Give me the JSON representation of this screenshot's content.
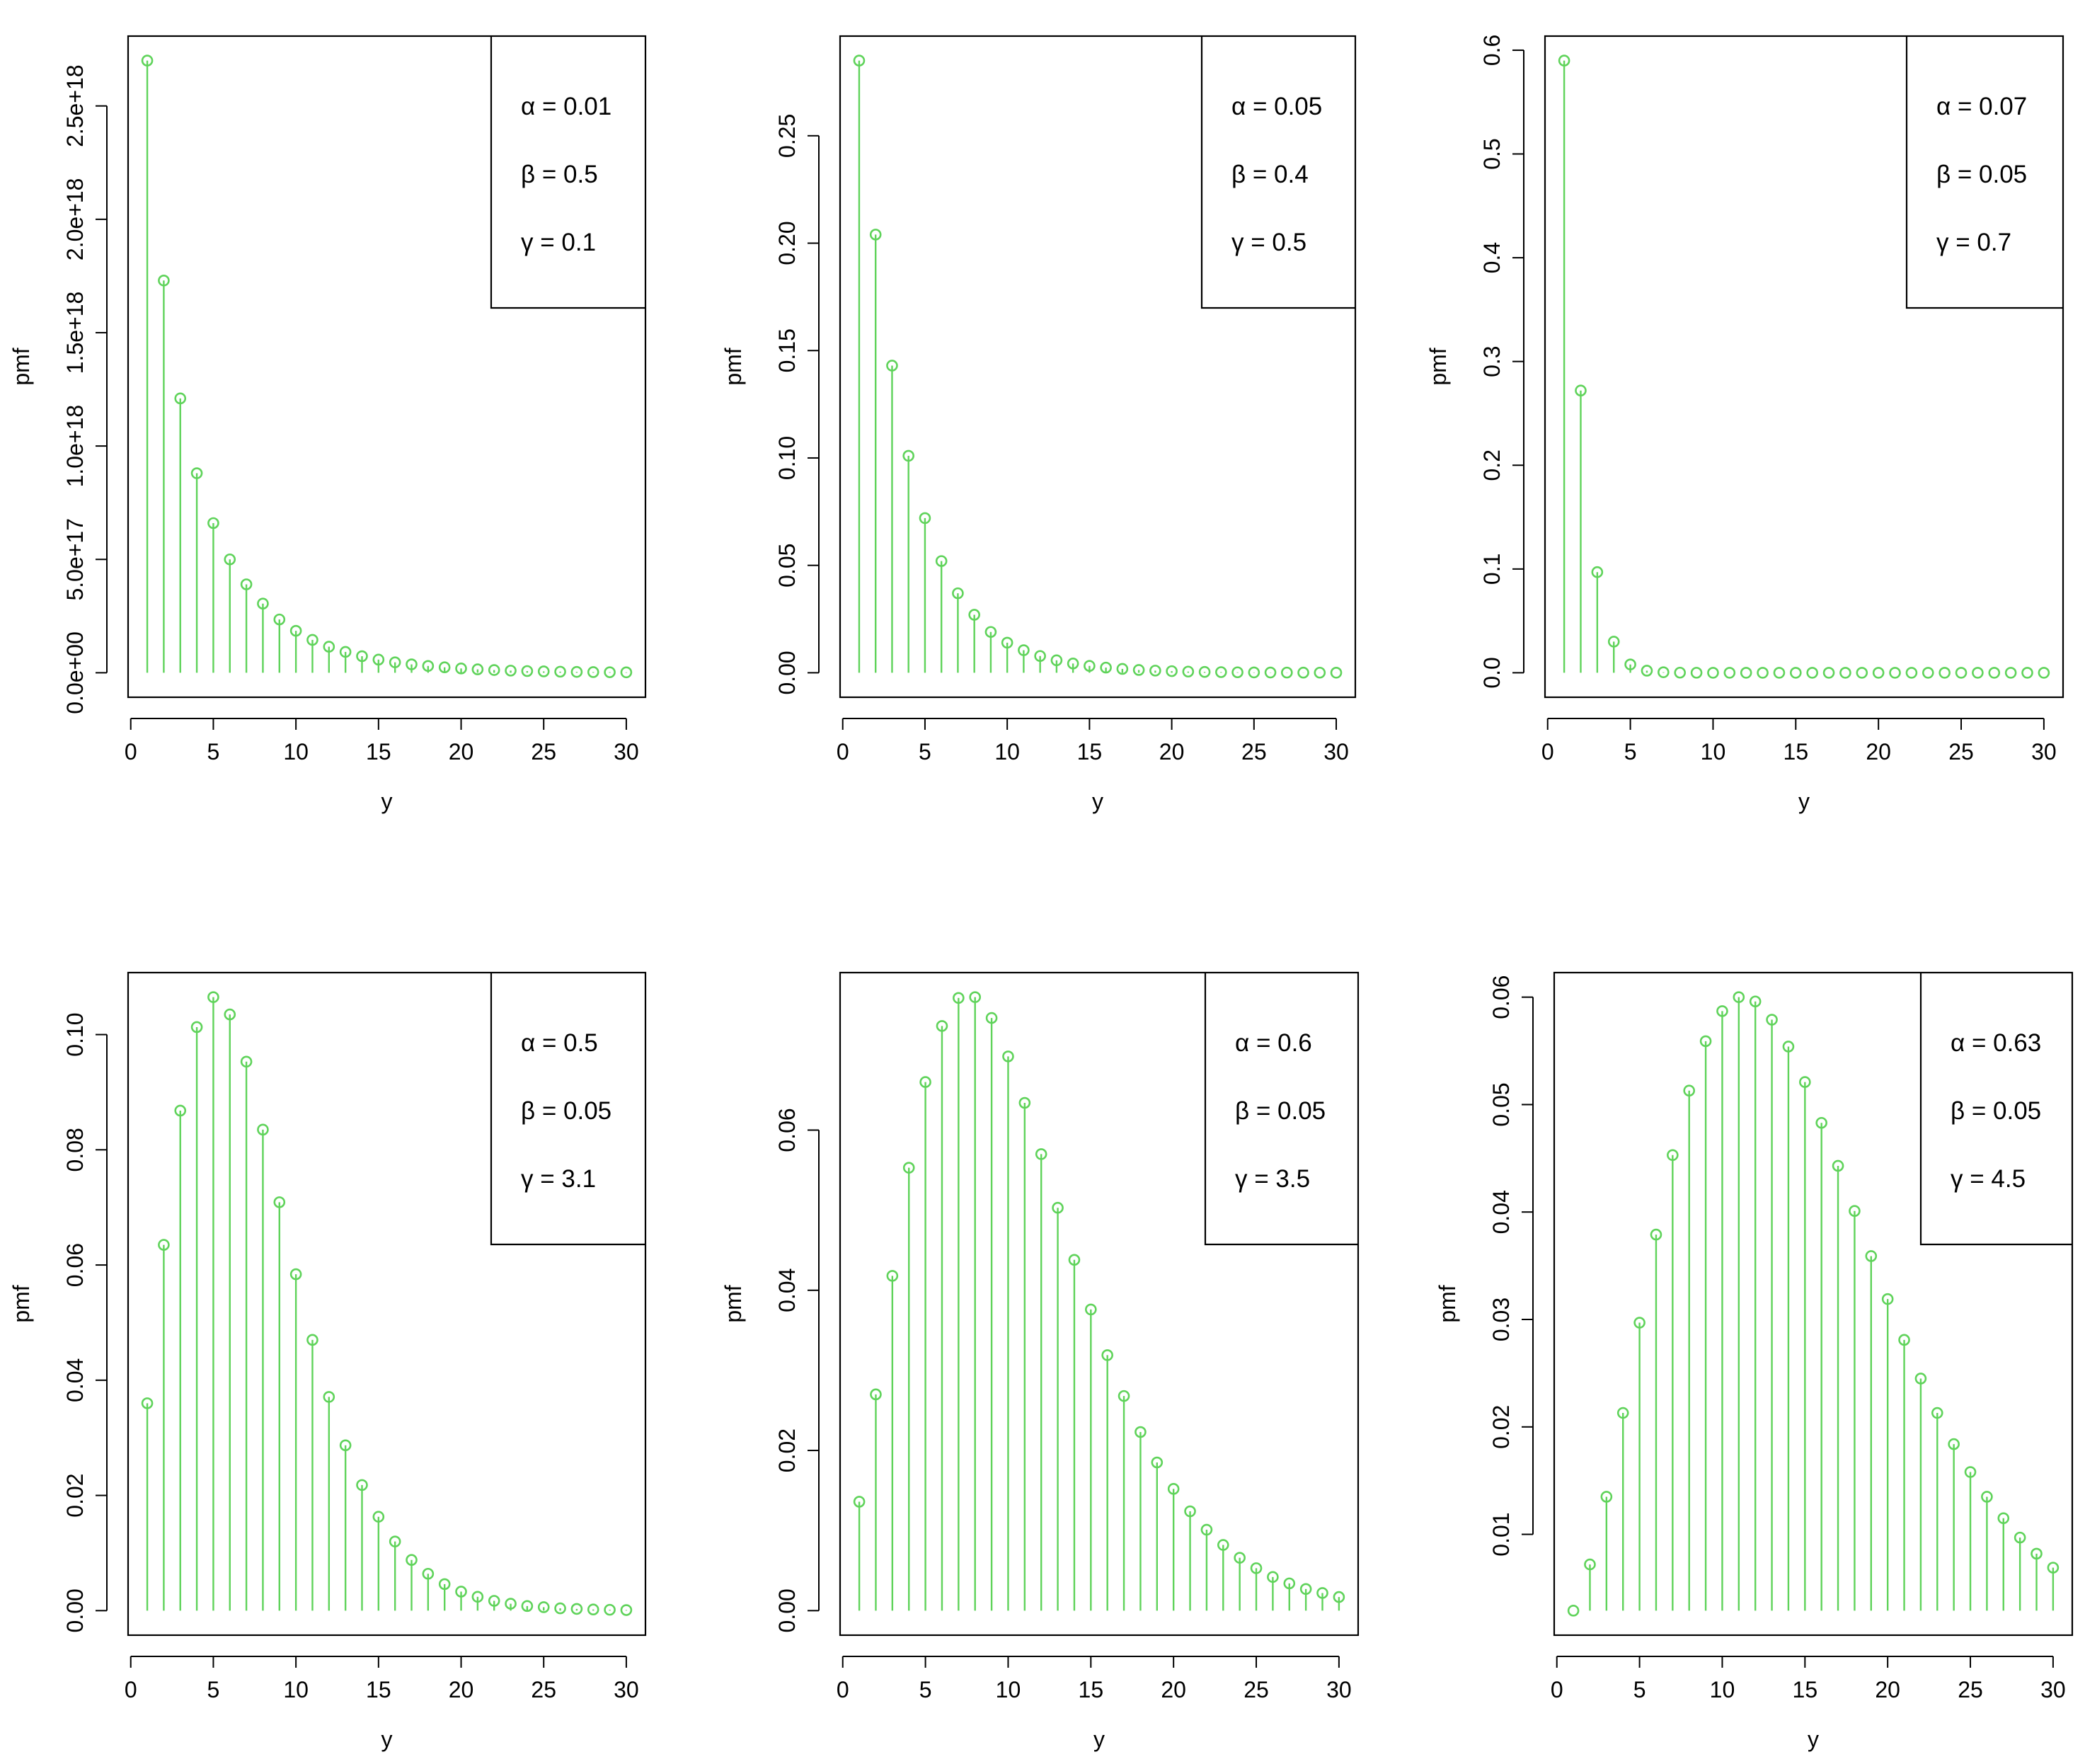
{
  "colors": {
    "series": "#5fd35a",
    "axis": "#000000",
    "background": "#ffffff"
  },
  "chart_data": [
    {
      "type": "scatter",
      "style": "stem",
      "xlabel": "y",
      "ylabel": "pmf",
      "xlim": [
        1,
        30
      ],
      "xticks": [
        "0",
        "5",
        "10",
        "15",
        "20",
        "25",
        "30"
      ],
      "xtick_values": [
        0,
        5,
        10,
        15,
        20,
        25,
        30
      ],
      "yticks": [
        "0.0e+00",
        "5.0e+17",
        "1.0e+18",
        "1.5e+18",
        "2.0e+18",
        "2.5e+18"
      ],
      "ytick_values": [
        0,
        5e+17,
        1e+18,
        1.5e+18,
        2e+18,
        2.5e+18
      ],
      "ylim": [
        0,
        2.7e+18
      ],
      "legend": [
        "α = 0.01",
        "β = 0.5",
        "γ = 0.1"
      ],
      "legend_position": "top-right",
      "x": [
        1,
        2,
        3,
        4,
        5,
        6,
        7,
        8,
        9,
        10,
        11,
        12,
        13,
        14,
        15,
        16,
        17,
        18,
        19,
        20,
        21,
        22,
        23,
        24,
        25,
        26,
        27,
        28,
        29,
        30
      ],
      "values": [
        2.7e+18,
        1.73e+18,
        1.21e+18,
        8.8e+17,
        6.6e+17,
        5e+17,
        3.9e+17,
        3.05e+17,
        2.35e+17,
        1.85e+17,
        1.45e+17,
        1.15e+17,
        9.2e+16,
        7.3e+16,
        5.8e+16,
        4.6e+16,
        3.7e+16,
        3e+16,
        2.4e+16,
        1.9e+16,
        1.5e+16,
        1.2e+16,
        9500000000000000.0,
        7500000000000000.0,
        6000000000000000.0,
        4800000000000000.0,
        3800000000000000.0,
        3000000000000000.0,
        2400000000000000.0,
        1900000000000000.0
      ]
    },
    {
      "type": "scatter",
      "style": "stem",
      "xlabel": "y",
      "ylabel": "pmf",
      "xlim": [
        1,
        30
      ],
      "xticks": [
        "0",
        "5",
        "10",
        "15",
        "20",
        "25",
        "30"
      ],
      "xtick_values": [
        0,
        5,
        10,
        15,
        20,
        25,
        30
      ],
      "yticks": [
        "0.00",
        "0.05",
        "0.10",
        "0.15",
        "0.20",
        "0.25"
      ],
      "ytick_values": [
        0,
        0.05,
        0.1,
        0.15,
        0.2,
        0.25
      ],
      "ylim": [
        0,
        0.285
      ],
      "legend": [
        "α = 0.05",
        "β = 0.4",
        "γ = 0.5"
      ],
      "legend_position": "top-right",
      "x": [
        1,
        2,
        3,
        4,
        5,
        6,
        7,
        8,
        9,
        10,
        11,
        12,
        13,
        14,
        15,
        16,
        17,
        18,
        19,
        20,
        21,
        22,
        23,
        24,
        25,
        26,
        27,
        28,
        29,
        30
      ],
      "values": [
        0.285,
        0.204,
        0.143,
        0.101,
        0.072,
        0.052,
        0.037,
        0.027,
        0.019,
        0.014,
        0.0105,
        0.0078,
        0.0058,
        0.0043,
        0.0032,
        0.0024,
        0.0018,
        0.0013,
        0.001,
        0.00075,
        0.00055,
        0.0004,
        0.0003,
        0.00022,
        0.00016,
        0.00012,
        9e-05,
        7e-05,
        5e-05,
        4e-05
      ]
    },
    {
      "type": "scatter",
      "style": "stem",
      "xlabel": "y",
      "ylabel": "pmf",
      "xlim": [
        1,
        30
      ],
      "xticks": [
        "0",
        "5",
        "10",
        "15",
        "20",
        "25",
        "30"
      ],
      "xtick_values": [
        0,
        5,
        10,
        15,
        20,
        25,
        30
      ],
      "yticks": [
        "0.0",
        "0.1",
        "0.2",
        "0.3",
        "0.4",
        "0.5",
        "0.6"
      ],
      "ytick_values": [
        0,
        0.1,
        0.2,
        0.3,
        0.4,
        0.5,
        0.6
      ],
      "ylim": [
        0,
        0.59
      ],
      "legend": [
        "α = 0.07",
        "β = 0.05",
        "γ = 0.7"
      ],
      "legend_position": "top-right",
      "x": [
        1,
        2,
        3,
        4,
        5,
        6,
        7,
        8,
        9,
        10,
        11,
        12,
        13,
        14,
        15,
        16,
        17,
        18,
        19,
        20,
        21,
        22,
        23,
        24,
        25,
        26,
        27,
        28,
        29,
        30
      ],
      "values": [
        0.59,
        0.272,
        0.097,
        0.03,
        0.008,
        0.002,
        0.0005,
        0.0001,
        2e-05,
        0,
        0,
        0,
        0,
        0,
        0,
        0,
        0,
        0,
        0,
        0,
        0,
        0,
        0,
        0,
        0,
        0,
        0,
        0,
        0,
        0
      ]
    },
    {
      "type": "scatter",
      "style": "stem",
      "xlabel": "y",
      "ylabel": "pmf",
      "xlim": [
        1,
        30
      ],
      "xticks": [
        "0",
        "5",
        "10",
        "15",
        "20",
        "25",
        "30"
      ],
      "xtick_values": [
        0,
        5,
        10,
        15,
        20,
        25,
        30
      ],
      "yticks": [
        "0.00",
        "0.02",
        "0.04",
        "0.06",
        "0.08",
        "0.10"
      ],
      "ytick_values": [
        0,
        0.02,
        0.04,
        0.06,
        0.08,
        0.1
      ],
      "ylim": [
        0,
        0.1065
      ],
      "legend": [
        "α = 0.5",
        "β = 0.05",
        "γ = 3.1"
      ],
      "legend_position": "top-right",
      "x": [
        1,
        2,
        3,
        4,
        5,
        6,
        7,
        8,
        9,
        10,
        11,
        12,
        13,
        14,
        15,
        16,
        17,
        18,
        19,
        20,
        21,
        22,
        23,
        24,
        25,
        26,
        27,
        28,
        29,
        30
      ],
      "values": [
        0.036,
        0.0635,
        0.0868,
        0.1013,
        0.1065,
        0.1035,
        0.0953,
        0.0835,
        0.0709,
        0.0584,
        0.047,
        0.0371,
        0.0287,
        0.0218,
        0.0163,
        0.012,
        0.0088,
        0.0064,
        0.0046,
        0.0033,
        0.0024,
        0.0017,
        0.0012,
        0.0008,
        0.0006,
        0.0004,
        0.0003,
        0.0002,
        0.00015,
        0.0001
      ]
    },
    {
      "type": "scatter",
      "style": "stem",
      "xlabel": "y",
      "ylabel": "pmf",
      "xlim": [
        1,
        30
      ],
      "xticks": [
        "0",
        "5",
        "10",
        "15",
        "20",
        "25",
        "30"
      ],
      "xtick_values": [
        0,
        5,
        10,
        15,
        20,
        25,
        30
      ],
      "yticks": [
        "0.00",
        "0.02",
        "0.04",
        "0.06"
      ],
      "ytick_values": [
        0,
        0.02,
        0.04,
        0.06
      ],
      "ylim": [
        0,
        0.0766
      ],
      "legend": [
        "α = 0.6",
        "β = 0.05",
        "γ = 3.5"
      ],
      "legend_position": "top-right",
      "x": [
        1,
        2,
        3,
        4,
        5,
        6,
        7,
        8,
        9,
        10,
        11,
        12,
        13,
        14,
        15,
        16,
        17,
        18,
        19,
        20,
        21,
        22,
        23,
        24,
        25,
        26,
        27,
        28,
        29,
        30
      ],
      "values": [
        0.0136,
        0.027,
        0.0418,
        0.0553,
        0.066,
        0.073,
        0.0765,
        0.0766,
        0.074,
        0.0692,
        0.0634,
        0.057,
        0.0503,
        0.0438,
        0.0376,
        0.0319,
        0.0268,
        0.0223,
        0.0185,
        0.0152,
        0.0124,
        0.0101,
        0.0082,
        0.0066,
        0.0053,
        0.0042,
        0.0034,
        0.0027,
        0.0022,
        0.0017
      ]
    },
    {
      "type": "scatter",
      "style": "stem",
      "xlabel": "y",
      "ylabel": "pmf",
      "xlim": [
        1,
        30
      ],
      "xticks": [
        "0",
        "5",
        "10",
        "15",
        "20",
        "25",
        "30"
      ],
      "xtick_values": [
        0,
        5,
        10,
        15,
        20,
        25,
        30
      ],
      "yticks": [
        "0.01",
        "0.02",
        "0.03",
        "0.04",
        "0.05",
        "0.06"
      ],
      "ytick_values": [
        0.01,
        0.02,
        0.03,
        0.04,
        0.05,
        0.06
      ],
      "ylim": [
        0.0029,
        0.06
      ],
      "legend": [
        "α = 0.63",
        "β = 0.05",
        "γ = 4.5"
      ],
      "legend_position": "top-right",
      "x": [
        1,
        2,
        3,
        4,
        5,
        6,
        7,
        8,
        9,
        10,
        11,
        12,
        13,
        14,
        15,
        16,
        17,
        18,
        19,
        20,
        21,
        22,
        23,
        24,
        25,
        26,
        27,
        28,
        29,
        30
      ],
      "values": [
        0.0029,
        0.0072,
        0.0135,
        0.0213,
        0.0297,
        0.0379,
        0.0453,
        0.0513,
        0.0559,
        0.0587,
        0.06,
        0.0596,
        0.0579,
        0.0554,
        0.0521,
        0.0483,
        0.0443,
        0.0401,
        0.0359,
        0.0319,
        0.0281,
        0.0245,
        0.0213,
        0.0184,
        0.0158,
        0.0135,
        0.0115,
        0.0097,
        0.0082,
        0.0069
      ]
    }
  ]
}
